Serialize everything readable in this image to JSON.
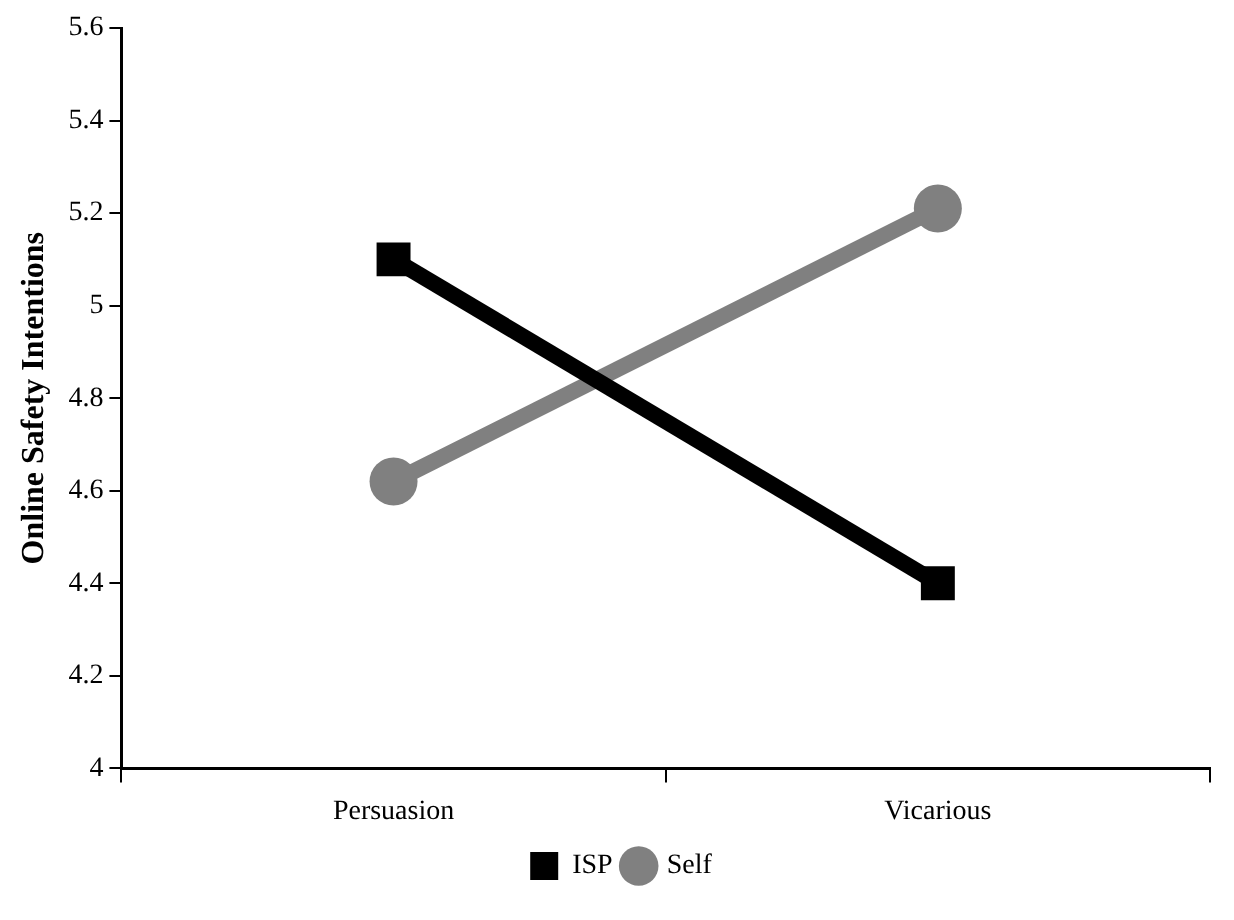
{
  "chart_data": {
    "type": "line",
    "ylabel": "Online Safety Intentions",
    "categories": [
      "Persuasion",
      "Vicarious"
    ],
    "series": [
      {
        "name": "ISP",
        "color": "#000000",
        "values": [
          5.1,
          4.4
        ],
        "marker": "square"
      },
      {
        "name": "Self",
        "color": "#808080",
        "values": [
          4.62,
          5.21
        ],
        "marker": "circle"
      }
    ],
    "ylim": [
      4,
      5.6
    ],
    "yticks": [
      4,
      4.2,
      4.4,
      4.6,
      4.8,
      5,
      5.2,
      5.4,
      5.6
    ],
    "grid": false,
    "legend": "bottom",
    "line_style": "solid"
  }
}
